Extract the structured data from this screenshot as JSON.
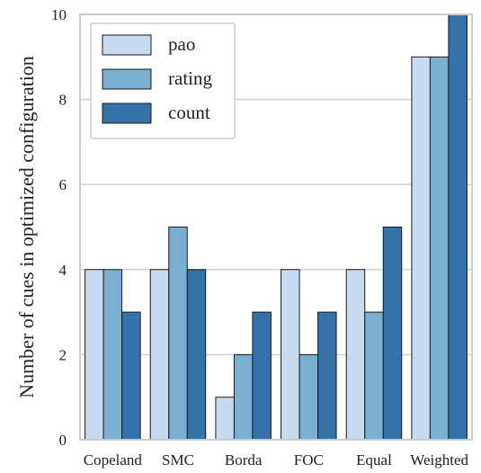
{
  "chart_data": {
    "type": "bar",
    "categories": [
      "Copeland",
      "SMC",
      "Borda",
      "FOC",
      "Equal",
      "Weighted"
    ],
    "series": [
      {
        "name": "pao",
        "values": [
          4,
          4,
          1,
          4,
          4,
          9
        ]
      },
      {
        "name": "rating",
        "values": [
          4,
          5,
          2,
          2,
          3,
          9
        ]
      },
      {
        "name": "count",
        "values": [
          3,
          4,
          3,
          3,
          5,
          10
        ]
      }
    ],
    "colors": [
      "#c6dbef",
      "#7bafd2",
      "#3572a9"
    ],
    "title": "",
    "xlabel": "",
    "ylabel": "Number of cues in optimized configuration",
    "ylim": [
      0,
      10
    ],
    "yticks": [
      0,
      2,
      4,
      6,
      8,
      10
    ],
    "grid": "horizontal",
    "legend_position": "top-left"
  }
}
